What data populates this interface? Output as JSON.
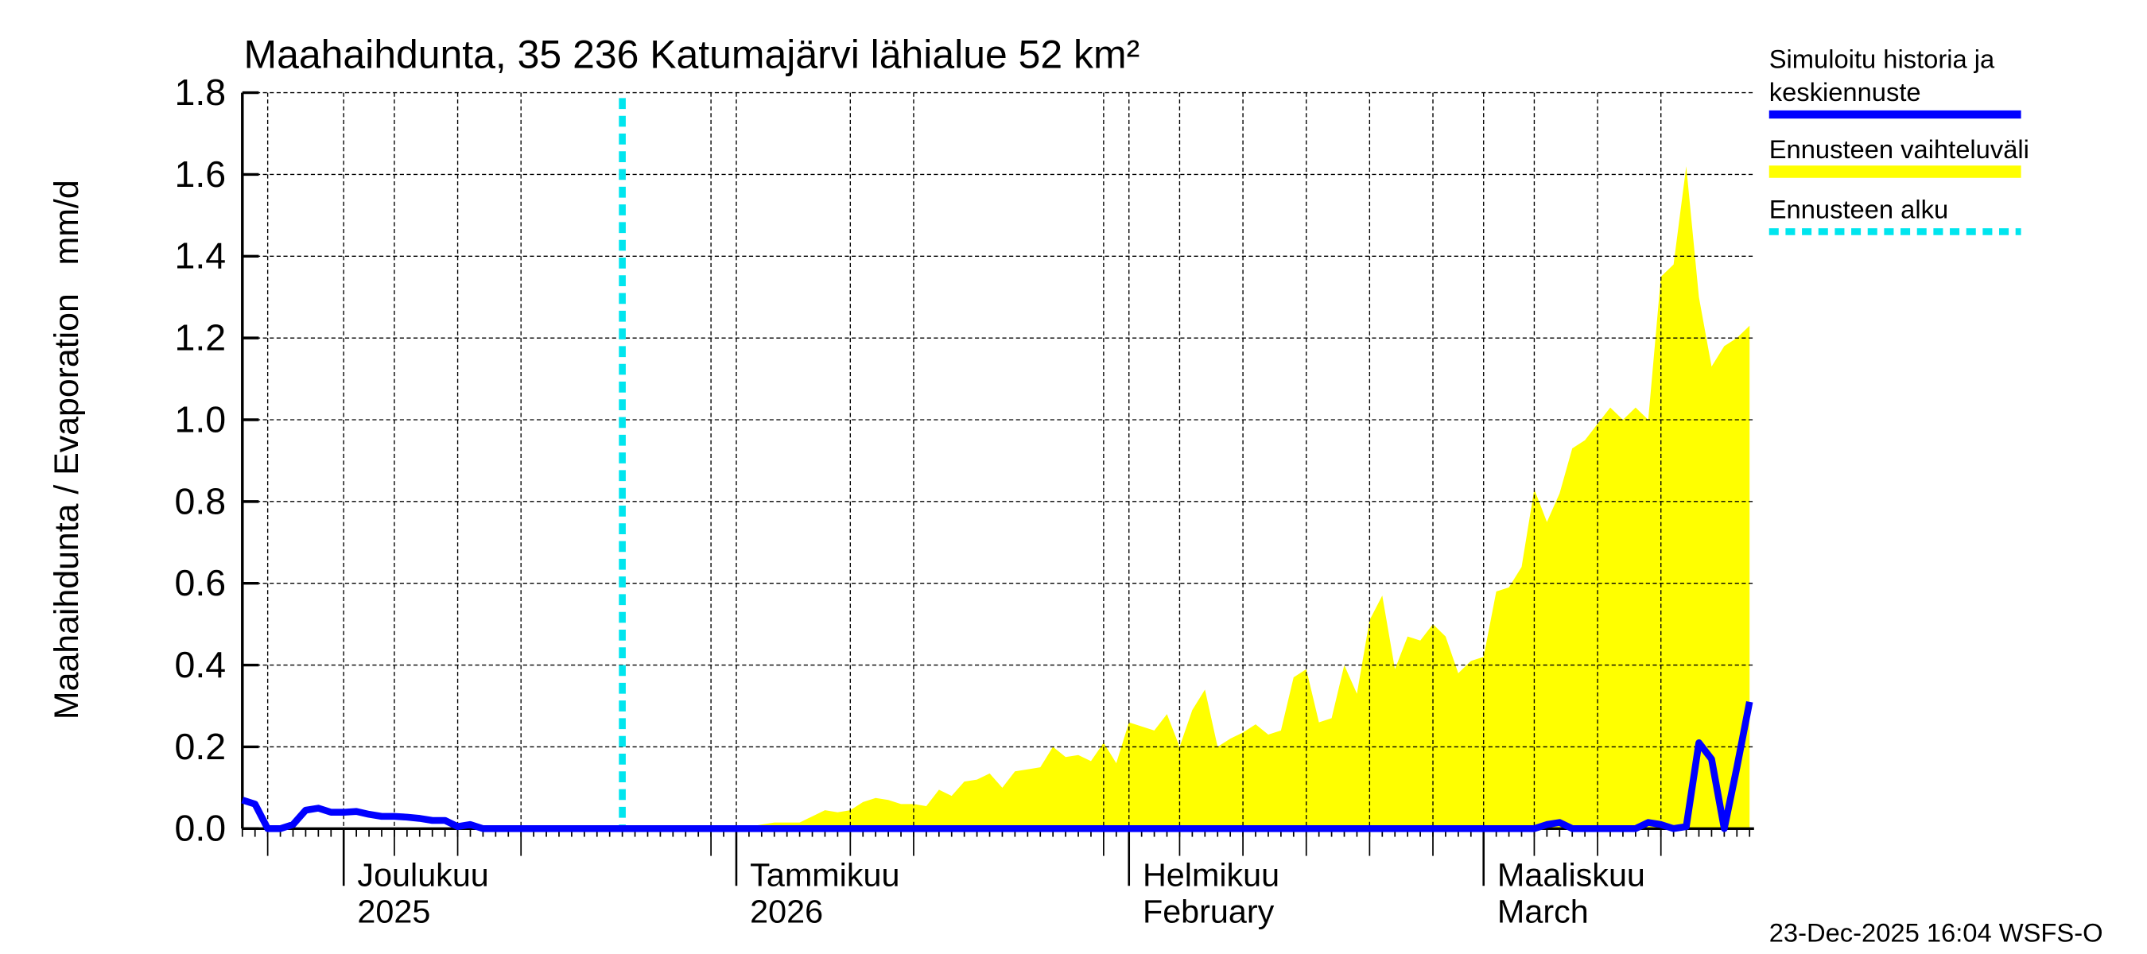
{
  "chart_data": {
    "type": "area",
    "title": "Maahaihdunta, 35 236 Katumajärvi lähialue 52 km²",
    "ylabel": "Maahaihdunta / Evaporation   mm/d",
    "xlabel": "",
    "ylim": [
      0,
      1.8
    ],
    "yticks": [
      "0.0",
      "0.2",
      "0.4",
      "0.6",
      "0.8",
      "1.0",
      "1.2",
      "1.4",
      "1.6",
      "1.8"
    ],
    "xlim": [
      "2025-11-23",
      "2026-03-22"
    ],
    "x_month_labels": [
      {
        "date": "2025-12-01",
        "line1": "Joulukuu",
        "line2": "2025"
      },
      {
        "date": "2026-01-01",
        "line1": "Tammikuu",
        "line2": "2026"
      },
      {
        "date": "2026-02-01",
        "line1": "Helmikuu",
        "line2": "February"
      },
      {
        "date": "2026-03-01",
        "line1": "Maaliskuu",
        "line2": "March"
      }
    ],
    "grid": true,
    "legend_position": "right",
    "forecast_start": "2025-12-23",
    "series": [
      {
        "name": "Simuloitu historia ja keskiennuste",
        "color": "#0000ff",
        "kind": "line",
        "start_date": "2025-11-23",
        "step": "1 day",
        "values": [
          0.07,
          0.06,
          0,
          0,
          0.01,
          0.045,
          0.05,
          0.04,
          0.04,
          0.042,
          0.035,
          0.03,
          0.03,
          0.028,
          0.025,
          0.02,
          0.02,
          0.005,
          0.01,
          0,
          0,
          0,
          0,
          0,
          0,
          0,
          0,
          0,
          0,
          0,
          0,
          0,
          0,
          0,
          0,
          0,
          0,
          0,
          0,
          0,
          0,
          0,
          0,
          0,
          0,
          0,
          0,
          0,
          0,
          0,
          0,
          0,
          0,
          0,
          0,
          0,
          0,
          0,
          0,
          0,
          0,
          0,
          0,
          0,
          0,
          0,
          0,
          0,
          0,
          0,
          0,
          0,
          0,
          0,
          0,
          0,
          0,
          0,
          0,
          0,
          0,
          0,
          0,
          0,
          0,
          0,
          0,
          0,
          0,
          0,
          0,
          0,
          0,
          0,
          0,
          0,
          0,
          0,
          0,
          0,
          0,
          0,
          0,
          0.01,
          0.015,
          0,
          0,
          0,
          0,
          0,
          0,
          0.015,
          0.01,
          0,
          0.005,
          0.21,
          0.17,
          0,
          0.15,
          0.31
        ]
      },
      {
        "name": "Ennusteen vaihteluväli",
        "color": "#ffff00",
        "kind": "band",
        "start_date": "2026-01-01",
        "step": "1 day",
        "lower": 0,
        "upper": [
          0,
          0.005,
          0.01,
          0.015,
          0.015,
          0.015,
          0.03,
          0.045,
          0.04,
          0.045,
          0.065,
          0.075,
          0.07,
          0.06,
          0.06,
          0.055,
          0.095,
          0.08,
          0.115,
          0.12,
          0.135,
          0.1,
          0.14,
          0.145,
          0.15,
          0.2,
          0.175,
          0.18,
          0.165,
          0.21,
          0.16,
          0.26,
          0.25,
          0.24,
          0.28,
          0.2,
          0.29,
          0.34,
          0.2,
          0.22,
          0.235,
          0.255,
          0.23,
          0.24,
          0.37,
          0.39,
          0.26,
          0.27,
          0.4,
          0.33,
          0.51,
          0.57,
          0.39,
          0.47,
          0.46,
          0.5,
          0.47,
          0.38,
          0.41,
          0.42,
          0.58,
          0.59,
          0.64,
          0.83,
          0.75,
          0.82,
          0.93,
          0.95,
          0.99,
          1.03,
          1.0,
          1.03,
          1.0,
          1.35,
          1.38,
          1.62,
          1.3,
          1.13,
          1.18,
          1.2,
          1.23
        ]
      },
      {
        "name": "Ennusteen alku",
        "color": "#00e5ee",
        "kind": "vline"
      }
    ],
    "legend": [
      {
        "line1": "Simuloitu historia ja",
        "line2": "keskiennuste",
        "color": "#0000ff",
        "style": "solid"
      },
      {
        "line1": "Ennusteen vaihteluväli",
        "line2": "",
        "color": "#ffff00",
        "style": "band"
      },
      {
        "line1": "Ennusteen alku",
        "line2": "",
        "color": "#00e5ee",
        "style": "dotted"
      }
    ],
    "footer": "23-Dec-2025 16:04 WSFS-O"
  }
}
